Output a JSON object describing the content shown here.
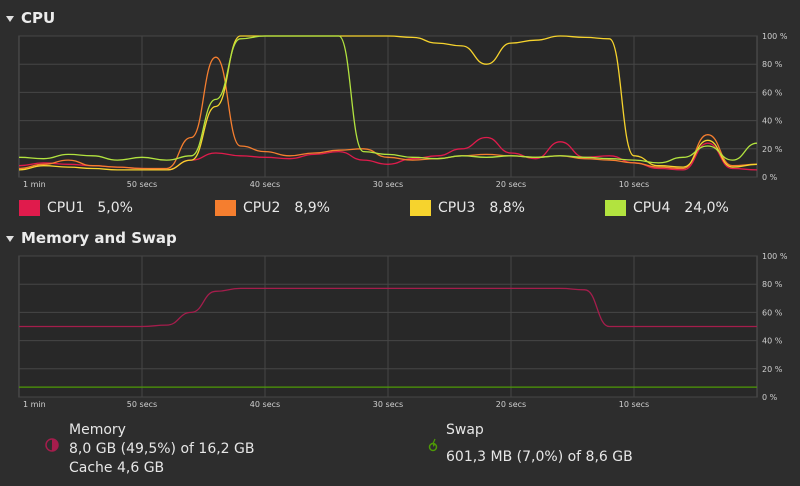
{
  "sections": {
    "cpu": {
      "title": "CPU"
    },
    "memory": {
      "title": "Memory and Swap"
    }
  },
  "x_ticks": [
    "1 min",
    "50 secs",
    "40 secs",
    "30 secs",
    "20 secs",
    "10 secs"
  ],
  "y_ticks": [
    "100 %",
    "80 %",
    "60 %",
    "40 %",
    "20 %",
    "0 %"
  ],
  "cpu_legend": [
    {
      "name": "CPU1",
      "value": "5,0%",
      "color": "#e01b4c"
    },
    {
      "name": "CPU2",
      "value": "8,9%",
      "color": "#f57e2f"
    },
    {
      "name": "CPU3",
      "value": "8,8%",
      "color": "#f6d32d"
    },
    {
      "name": "CPU4",
      "value": "24,0%",
      "color": "#b2e33f"
    }
  ],
  "memory": {
    "label": "Memory",
    "usage": "8,0 GB (49,5%) of 16,2 GB",
    "cache": "Cache 4,6 GB",
    "color": "#a51d4c"
  },
  "swap": {
    "label": "Swap",
    "usage": "601,3 MB (7,0%) of 8,6 GB",
    "color": "#4e9a06"
  },
  "chart_data": [
    {
      "type": "line",
      "title": "CPU",
      "x": [
        60,
        58,
        56,
        54,
        52,
        50,
        48,
        46,
        44,
        42,
        40,
        38,
        36,
        34,
        32,
        30,
        28,
        26,
        24,
        22,
        20,
        18,
        16,
        14,
        12,
        10,
        8,
        6,
        4,
        2,
        0
      ],
      "ylim": [
        0,
        100
      ],
      "series": [
        {
          "name": "CPU1",
          "values": [
            8,
            10,
            9,
            8,
            7,
            6,
            5,
            12,
            17,
            15,
            14,
            13,
            16,
            18,
            12,
            9,
            13,
            15,
            20,
            28,
            17,
            13,
            25,
            14,
            15,
            10,
            6,
            5,
            24,
            6,
            5
          ]
        },
        {
          "name": "CPU2",
          "values": [
            6,
            9,
            12,
            8,
            7,
            6,
            6,
            28,
            85,
            22,
            18,
            15,
            17,
            19,
            20,
            14,
            12,
            13,
            15,
            16,
            15,
            14,
            15,
            13,
            12,
            10,
            7,
            6,
            30,
            8,
            9
          ]
        },
        {
          "name": "CPU3",
          "values": [
            5,
            8,
            7,
            6,
            5,
            5,
            5,
            12,
            50,
            100,
            100,
            100,
            100,
            100,
            100,
            100,
            99,
            95,
            93,
            80,
            95,
            97,
            100,
            99,
            98,
            15,
            8,
            7,
            26,
            7,
            9
          ]
        },
        {
          "name": "CPU4",
          "values": [
            14,
            13,
            16,
            15,
            12,
            14,
            12,
            15,
            55,
            98,
            100,
            100,
            100,
            100,
            18,
            16,
            14,
            13,
            15,
            14,
            15,
            14,
            15,
            14,
            13,
            12,
            10,
            14,
            22,
            12,
            24
          ]
        }
      ]
    },
    {
      "type": "line",
      "title": "Memory and Swap",
      "x": [
        60,
        58,
        56,
        54,
        52,
        50,
        48,
        46,
        44,
        42,
        40,
        38,
        36,
        34,
        32,
        30,
        28,
        26,
        24,
        22,
        20,
        18,
        16,
        14,
        12,
        10,
        8,
        6,
        4,
        2,
        0
      ],
      "ylim": [
        0,
        100
      ],
      "series": [
        {
          "name": "Memory",
          "values": [
            50,
            50,
            50,
            50,
            50,
            50,
            51,
            60,
            75,
            77,
            77,
            77,
            77,
            77,
            77,
            77,
            77,
            77,
            77,
            77,
            77,
            77,
            77,
            76,
            50,
            50,
            50,
            50,
            50,
            50,
            50
          ]
        },
        {
          "name": "Swap",
          "values": [
            7,
            7,
            7,
            7,
            7,
            7,
            7,
            7,
            7,
            7,
            7,
            7,
            7,
            7,
            7,
            7,
            7,
            7,
            7,
            7,
            7,
            7,
            7,
            7,
            7,
            7,
            7,
            7,
            7,
            7,
            7
          ]
        }
      ]
    }
  ]
}
